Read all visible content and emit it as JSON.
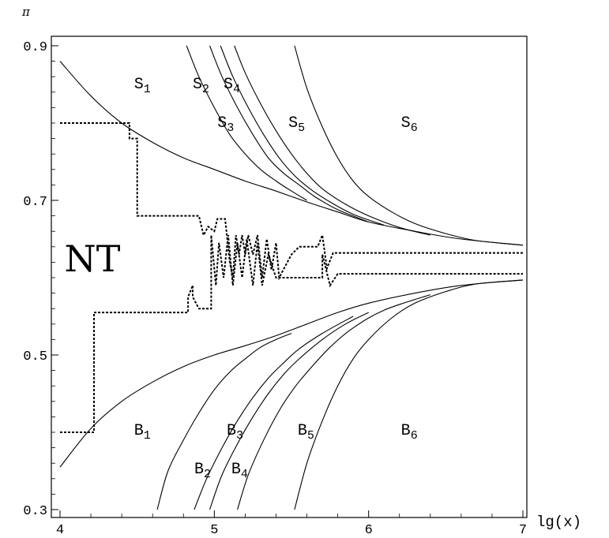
{
  "chart_data": {
    "type": "line",
    "title": "",
    "xlabel": "lg(x)",
    "ylabel": "π",
    "xlim": [
      4,
      7
    ],
    "ylim": [
      0.29,
      0.92
    ],
    "x_ticks": [
      {
        "value": 4,
        "label": "4"
      },
      {
        "value": 5,
        "label": "5"
      },
      {
        "value": 6,
        "label": "6"
      },
      {
        "value": 7,
        "label": "7"
      }
    ],
    "y_ticks": [
      {
        "value": 0.3,
        "label": "0.3"
      },
      {
        "value": 0.5,
        "label": "0.5"
      },
      {
        "value": 0.7,
        "label": "0.7"
      },
      {
        "value": 0.9,
        "label": "0.9"
      }
    ],
    "y_minor_ticks": [
      0.32,
      0.34,
      0.36,
      0.38,
      0.4,
      0.42,
      0.44,
      0.46,
      0.48,
      0.52,
      0.54,
      0.56,
      0.58,
      0.6,
      0.62,
      0.64,
      0.66,
      0.68,
      0.72,
      0.74,
      0.76,
      0.78,
      0.8,
      0.82,
      0.84,
      0.86,
      0.88
    ],
    "x_minor_ticks": [
      4.2,
      4.4,
      4.6,
      4.8,
      5.2,
      5.4,
      5.6,
      5.8,
      6.2,
      6.4,
      6.6,
      6.8
    ],
    "upper_curves": [
      {
        "x": [
          4.0,
          4.2,
          4.4,
          4.6,
          4.8,
          5.0,
          5.2,
          5.4,
          5.6,
          5.8,
          6.0,
          6.3,
          6.6,
          7.0
        ],
        "y": [
          0.88,
          0.835,
          0.8,
          0.775,
          0.755,
          0.74,
          0.725,
          0.712,
          0.698,
          0.685,
          0.672,
          0.66,
          0.65,
          0.642
        ]
      },
      {
        "x": [
          4.82,
          4.9,
          5.0,
          5.1,
          5.2,
          5.3,
          5.4,
          5.5,
          5.6
        ],
        "y": [
          0.9,
          0.86,
          0.82,
          0.785,
          0.76,
          0.74,
          0.725,
          0.712,
          0.7
        ]
      },
      {
        "x": [
          4.97,
          5.05,
          5.15,
          5.25,
          5.35,
          5.45,
          5.55,
          5.65,
          5.8,
          6.0
        ],
        "y": [
          0.9,
          0.86,
          0.82,
          0.785,
          0.755,
          0.735,
          0.72,
          0.705,
          0.688,
          0.672
        ]
      },
      {
        "x": [
          5.04,
          5.12,
          5.22,
          5.32,
          5.42,
          5.52,
          5.62,
          5.75,
          5.9,
          6.1
        ],
        "y": [
          0.9,
          0.86,
          0.82,
          0.785,
          0.755,
          0.732,
          0.715,
          0.698,
          0.682,
          0.668
        ]
      },
      {
        "x": [
          5.13,
          5.2,
          5.3,
          5.4,
          5.5,
          5.6,
          5.7,
          5.85,
          6.0,
          6.2,
          6.4
        ],
        "y": [
          0.9,
          0.865,
          0.825,
          0.79,
          0.76,
          0.735,
          0.715,
          0.695,
          0.68,
          0.665,
          0.655
        ]
      },
      {
        "x": [
          5.52,
          5.6,
          5.7,
          5.8,
          5.9,
          6.0,
          6.15,
          6.3,
          6.5,
          6.7,
          7.0
        ],
        "y": [
          0.9,
          0.845,
          0.795,
          0.755,
          0.725,
          0.705,
          0.685,
          0.67,
          0.657,
          0.648,
          0.642
        ]
      }
    ],
    "lower_curves": [
      {
        "x": [
          4.0,
          4.2,
          4.4,
          4.6,
          4.8,
          5.0,
          5.2,
          5.4,
          5.6,
          5.8,
          6.0,
          6.3,
          6.6,
          7.0
        ],
        "y": [
          0.355,
          0.405,
          0.44,
          0.465,
          0.485,
          0.5,
          0.512,
          0.525,
          0.54,
          0.555,
          0.567,
          0.58,
          0.59,
          0.597
        ]
      },
      {
        "x": [
          4.63,
          4.7,
          4.8,
          4.9,
          5.0,
          5.1,
          5.2,
          5.3,
          5.4,
          5.5
        ],
        "y": [
          0.3,
          0.35,
          0.39,
          0.425,
          0.455,
          0.478,
          0.495,
          0.51,
          0.52,
          0.528
        ]
      },
      {
        "x": [
          4.87,
          4.95,
          5.05,
          5.15,
          5.25,
          5.35,
          5.45,
          5.55,
          5.7,
          5.9
        ],
        "y": [
          0.3,
          0.34,
          0.38,
          0.415,
          0.445,
          0.47,
          0.49,
          0.508,
          0.528,
          0.55
        ]
      },
      {
        "x": [
          4.97,
          5.05,
          5.15,
          5.25,
          5.35,
          5.45,
          5.55,
          5.7,
          5.85,
          6.0
        ],
        "y": [
          0.3,
          0.345,
          0.385,
          0.42,
          0.45,
          0.475,
          0.495,
          0.52,
          0.54,
          0.555
        ]
      },
      {
        "x": [
          5.15,
          5.22,
          5.32,
          5.42,
          5.52,
          5.62,
          5.75,
          5.9,
          6.1,
          6.4
        ],
        "y": [
          0.3,
          0.345,
          0.39,
          0.428,
          0.458,
          0.482,
          0.51,
          0.535,
          0.558,
          0.578
        ]
      },
      {
        "x": [
          5.52,
          5.6,
          5.7,
          5.8,
          5.9,
          6.0,
          6.15,
          6.3,
          6.5,
          6.7,
          7.0
        ],
        "y": [
          0.3,
          0.36,
          0.415,
          0.46,
          0.495,
          0.52,
          0.548,
          0.567,
          0.582,
          0.592,
          0.597
        ]
      }
    ],
    "dotted_upper": {
      "x": [
        4.0,
        4.45,
        4.45,
        4.5,
        4.5,
        4.9,
        4.93,
        4.96,
        5.0,
        5.02,
        5.07,
        5.1,
        5.12,
        5.14,
        5.16,
        5.18,
        5.2,
        5.22,
        5.25,
        5.28,
        5.31,
        5.34,
        5.37,
        5.4,
        5.42,
        5.46,
        5.5,
        5.55,
        5.6,
        5.63,
        5.67,
        5.7,
        5.73,
        5.77,
        5.8,
        7.0
      ],
      "y": [
        0.8,
        0.8,
        0.78,
        0.78,
        0.68,
        0.68,
        0.655,
        0.666,
        0.66,
        0.676,
        0.676,
        0.62,
        0.6,
        0.655,
        0.63,
        0.655,
        0.63,
        0.655,
        0.63,
        0.655,
        0.6,
        0.65,
        0.61,
        0.645,
        0.6,
        0.615,
        0.63,
        0.64,
        0.64,
        0.64,
        0.64,
        0.655,
        0.612,
        0.632,
        0.632,
        0.632
      ]
    },
    "dotted_lower": {
      "x": [
        4.0,
        4.22,
        4.22,
        4.83,
        4.83,
        4.86,
        4.86,
        4.9,
        4.9,
        4.98,
        4.98,
        5.01,
        5.03,
        5.06,
        5.09,
        5.12,
        5.15,
        5.18,
        5.21,
        5.25,
        5.28,
        5.31,
        5.35,
        5.4,
        5.45,
        5.5,
        5.6,
        5.7,
        5.7,
        5.75,
        5.8,
        7.0
      ],
      "y": [
        0.4,
        0.4,
        0.555,
        0.555,
        0.575,
        0.59,
        0.575,
        0.56,
        0.56,
        0.56,
        0.655,
        0.59,
        0.645,
        0.6,
        0.655,
        0.59,
        0.645,
        0.6,
        0.65,
        0.59,
        0.645,
        0.59,
        0.63,
        0.6,
        0.6,
        0.6,
        0.6,
        0.6,
        0.63,
        0.59,
        0.605,
        0.605
      ]
    },
    "annotations": [
      {
        "text": "S",
        "sub": "1",
        "x": 4.48,
        "y": 0.845
      },
      {
        "text": "S",
        "sub": "2",
        "x": 4.86,
        "y": 0.845
      },
      {
        "text": "S",
        "sub": "4",
        "x": 5.06,
        "y": 0.845
      },
      {
        "text": "S",
        "sub": "3",
        "x": 5.02,
        "y": 0.795
      },
      {
        "text": "S",
        "sub": "5",
        "x": 5.48,
        "y": 0.795
      },
      {
        "text": "S",
        "sub": "6",
        "x": 6.21,
        "y": 0.795
      },
      {
        "text": "B",
        "sub": "1",
        "x": 4.48,
        "y": 0.397
      },
      {
        "text": "B",
        "sub": "3",
        "x": 5.08,
        "y": 0.397
      },
      {
        "text": "B",
        "sub": "5",
        "x": 5.54,
        "y": 0.397
      },
      {
        "text": "B",
        "sub": "6",
        "x": 6.21,
        "y": 0.397
      },
      {
        "text": "B",
        "sub": "2",
        "x": 4.87,
        "y": 0.347
      },
      {
        "text": "B",
        "sub": "4",
        "x": 5.11,
        "y": 0.347
      }
    ],
    "big_label": {
      "text": "NT",
      "x": 4.21,
      "y": 0.608
    }
  }
}
